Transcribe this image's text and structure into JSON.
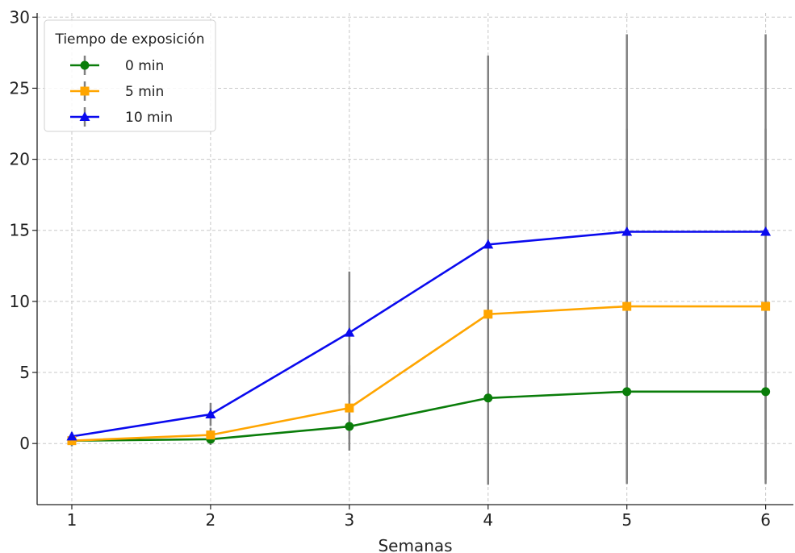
{
  "chart_data": {
    "type": "line",
    "xlabel": "Semanas",
    "ylabel": "",
    "x": [
      1,
      2,
      3,
      4,
      5,
      6
    ],
    "xticks": [
      "1",
      "2",
      "3",
      "4",
      "5",
      "6"
    ],
    "xlim": [
      0.75,
      6.2
    ],
    "ylim": [
      -4.3,
      30.3
    ],
    "yticks": [
      "0",
      "5",
      "10",
      "15",
      "20",
      "25",
      "30"
    ],
    "grid": true,
    "legend": {
      "title": "Tiempo de exposición",
      "position": "top-left"
    },
    "error_bar_color": "#808080",
    "series": [
      {
        "name": "0 min",
        "color": "#0a7d0a",
        "marker": "circle",
        "values": [
          0.2,
          0.3,
          1.2,
          3.2,
          3.65,
          3.65
        ],
        "error": [
          0.4,
          0.4,
          0.9,
          6.0,
          6.2,
          6.2
        ]
      },
      {
        "name": "5 min",
        "color": "#ffa500",
        "marker": "square",
        "values": [
          0.2,
          0.6,
          2.5,
          9.1,
          9.65,
          9.65
        ],
        "error": [
          0.3,
          0.5,
          3.0,
          12.0,
          12.5,
          12.5
        ]
      },
      {
        "name": "10 min",
        "color": "#0a0aee",
        "marker": "triangle",
        "values": [
          0.5,
          2.05,
          7.8,
          14.0,
          14.9,
          14.9
        ],
        "error": [
          0.3,
          0.8,
          4.3,
          13.3,
          13.9,
          13.9
        ]
      }
    ]
  }
}
